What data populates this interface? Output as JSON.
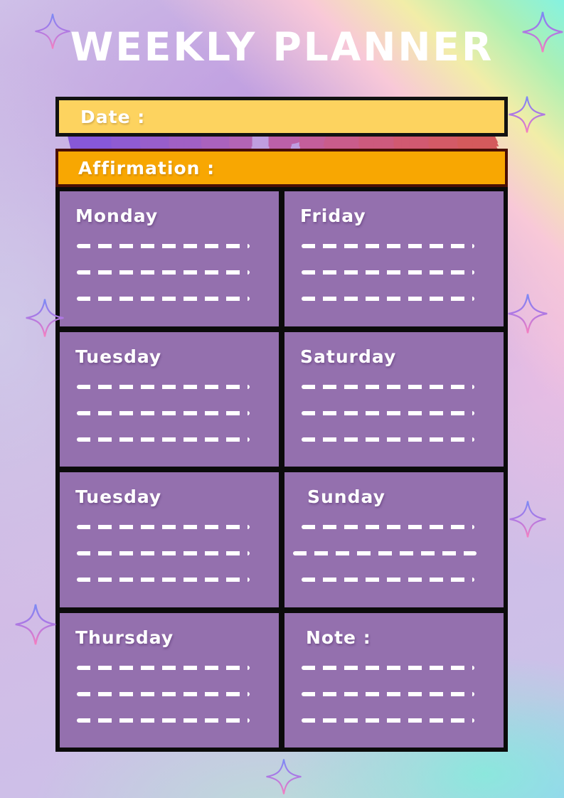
{
  "title": {
    "text": "WEEKLY PLANNER",
    "letters": [
      {
        "ch": "W",
        "color": "#8758d8"
      },
      {
        "ch": "E",
        "color": "#8f5bd2"
      },
      {
        "ch": "E",
        "color": "#985ecb"
      },
      {
        "ch": "K",
        "color": "#a160c4"
      },
      {
        "ch": "L",
        "color": "#aa62bd"
      },
      {
        "ch": "Y",
        "color": "#b364b5"
      },
      {
        "ch": " ",
        "color": "#b862ae"
      },
      {
        "ch": "P",
        "color": "#bc60a8"
      },
      {
        "ch": "L",
        "color": "#c45e9a"
      },
      {
        "ch": "A",
        "color": "#c95c8b"
      },
      {
        "ch": "N",
        "color": "#cd5a7d"
      },
      {
        "ch": "N",
        "color": "#d15970"
      },
      {
        "ch": "E",
        "color": "#d35a66"
      },
      {
        "ch": "R",
        "color": "#d45a5c"
      }
    ]
  },
  "bars": {
    "date_label": "Date :",
    "affirmation_label": "Affirmation :"
  },
  "grid": {
    "lines_per_cell": 3,
    "cells": [
      {
        "label": "Monday"
      },
      {
        "label": "Friday"
      },
      {
        "label": "Tuesday"
      },
      {
        "label": "Saturday"
      },
      {
        "label": "Tuesday"
      },
      {
        "label": "Sunday"
      },
      {
        "label": "Thursday"
      },
      {
        "label": "Note :"
      }
    ]
  },
  "colors": {
    "card_purple": "#9470AE",
    "date_bar_yellow": "#FDD35F",
    "affirmation_orange": "#F8A702",
    "affirmation_border": "#4A0F06",
    "grid_border_black": "#0B0B0B",
    "line_white": "#FFFFFF",
    "sparkle_top": "#7b8bf5",
    "sparkle_mid": "#a878e6",
    "sparkle_bottom": "#f67fc0",
    "title_outline_start": "#8758d8",
    "title_outline_end": "#d45a5c"
  },
  "icons": {
    "sparkle": "sparkle-icon"
  }
}
